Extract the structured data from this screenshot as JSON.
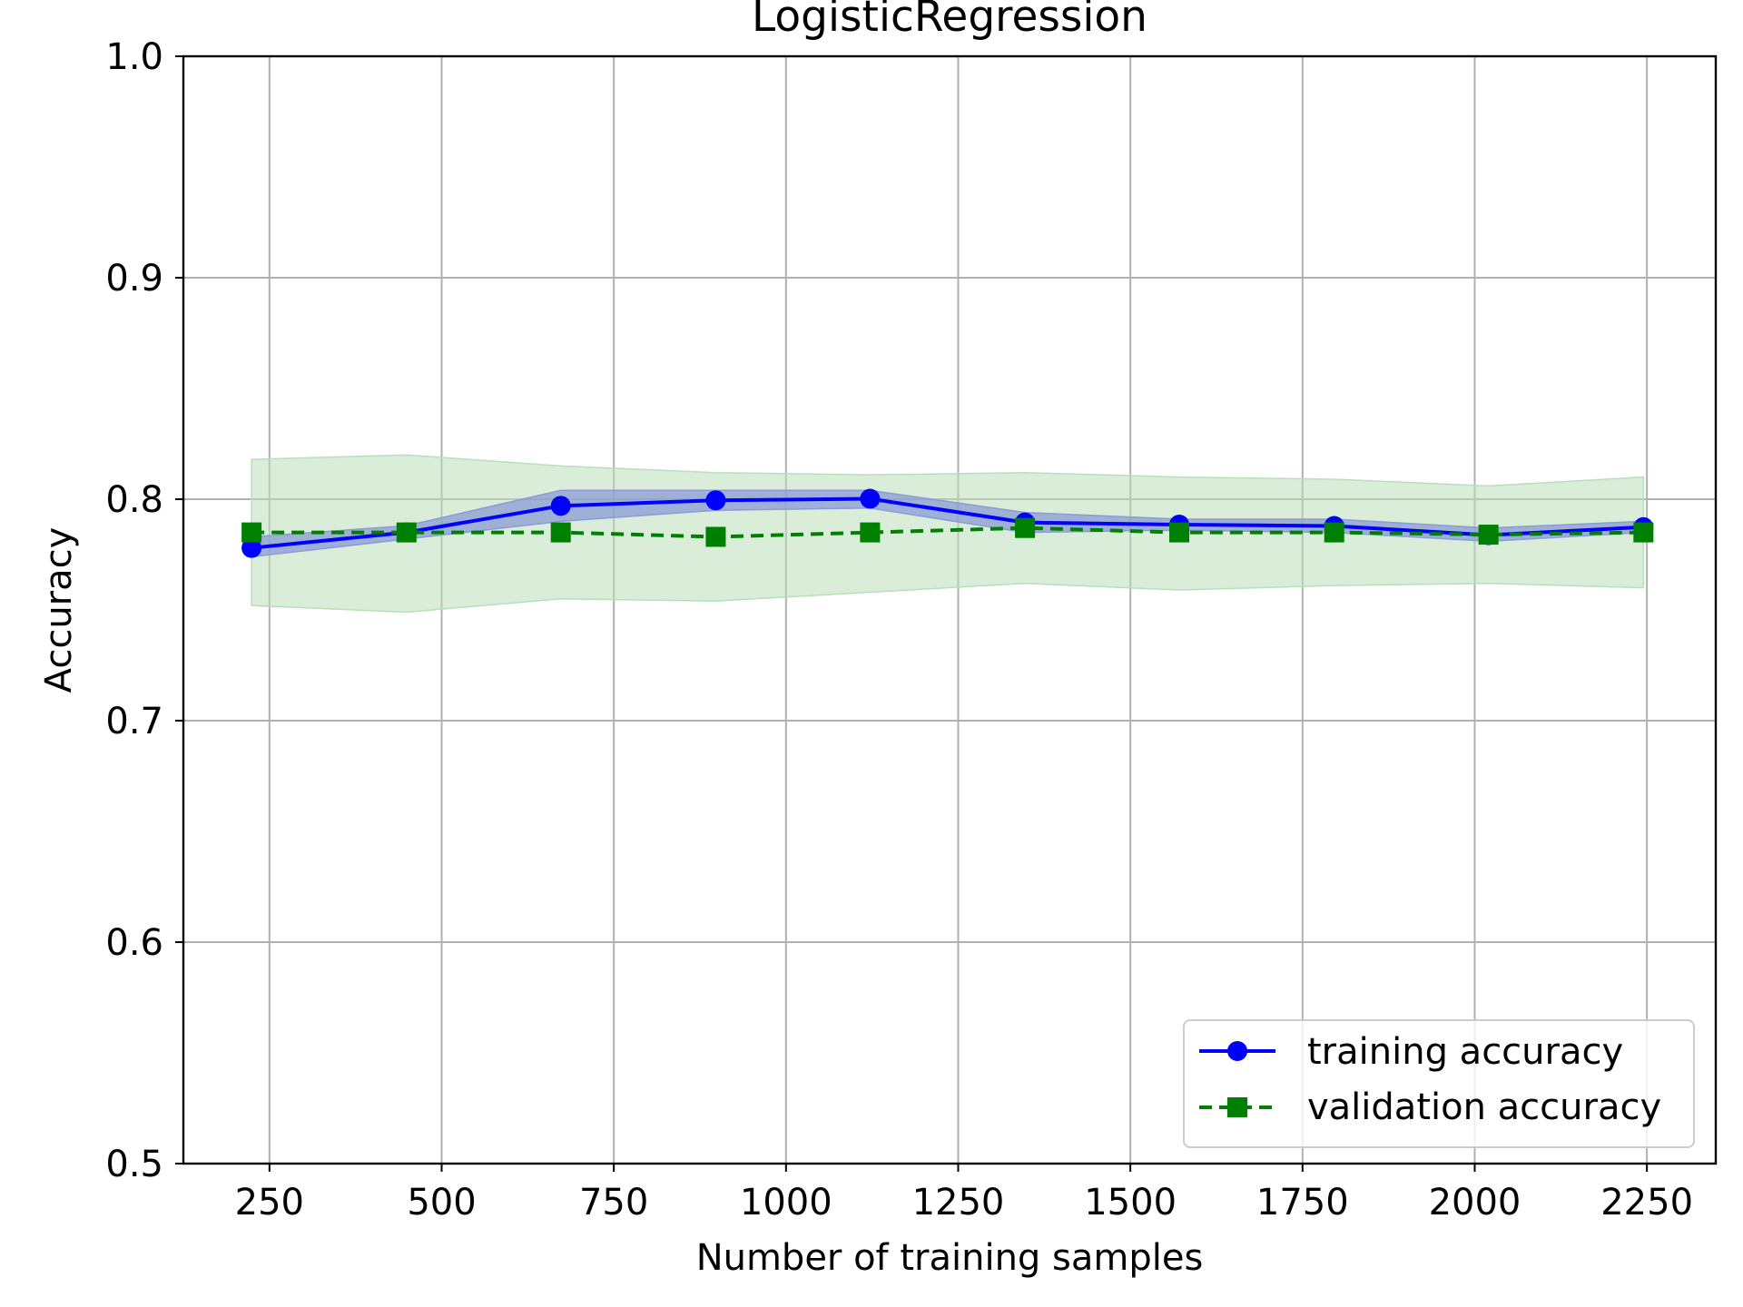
{
  "chart_data": {
    "type": "line",
    "title": "LogisticRegression",
    "xlabel": "Number of training samples",
    "ylabel": "Accuracy",
    "xlim": [
      125,
      2350
    ],
    "ylim": [
      0.5,
      1.0
    ],
    "xticks": [
      250,
      500,
      750,
      1000,
      1250,
      1500,
      1750,
      2000,
      2250
    ],
    "yticks": [
      0.5,
      0.6,
      0.7,
      0.8,
      0.9,
      1.0
    ],
    "ytick_labels": [
      "0.5",
      "0.6",
      "0.7",
      "0.8",
      "0.9",
      "1.0"
    ],
    "grid": true,
    "legend_position": "lower right",
    "x": [
      224,
      449,
      673,
      898,
      1122,
      1347,
      1571,
      1796,
      2020,
      2245
    ],
    "series": [
      {
        "name": "training accuracy",
        "color": "#0000ff",
        "marker": "circle",
        "linestyle": "solid",
        "values": [
          0.778,
          0.785,
          0.797,
          0.7995,
          0.8002,
          0.7895,
          0.7885,
          0.7879,
          0.7838,
          0.7874
        ],
        "band_lower": [
          0.774,
          0.782,
          0.79,
          0.795,
          0.796,
          0.785,
          0.786,
          0.785,
          0.781,
          0.785
        ],
        "band_upper": [
          0.783,
          0.788,
          0.804,
          0.804,
          0.804,
          0.794,
          0.791,
          0.791,
          0.787,
          0.79
        ],
        "band_color": "#8b9bd6"
      },
      {
        "name": "validation accuracy",
        "color": "#008000",
        "marker": "square",
        "linestyle": "dashed",
        "values": [
          0.785,
          0.785,
          0.785,
          0.783,
          0.785,
          0.787,
          0.785,
          0.785,
          0.784,
          0.785
        ],
        "band_lower": [
          0.752,
          0.749,
          0.755,
          0.754,
          0.758,
          0.762,
          0.759,
          0.761,
          0.762,
          0.76
        ],
        "band_upper": [
          0.818,
          0.82,
          0.815,
          0.812,
          0.811,
          0.812,
          0.81,
          0.809,
          0.806,
          0.81
        ],
        "band_color": "#b9dfb9"
      }
    ]
  }
}
